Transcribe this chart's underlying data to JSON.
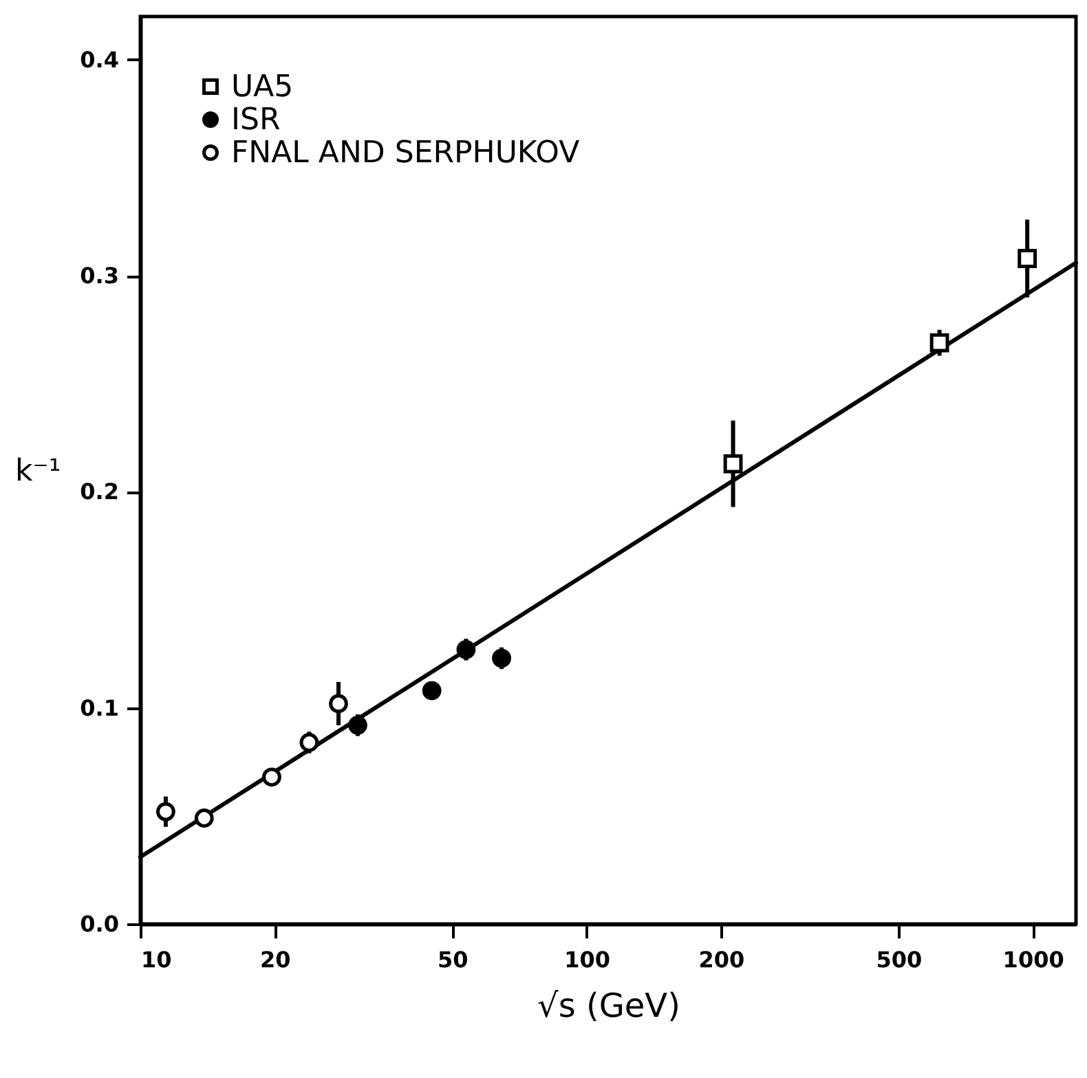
{
  "chart_data": {
    "type": "scatter",
    "xlabel": "√s (GeV)",
    "ylabel": "k⁻¹",
    "log": "x",
    "grid": false,
    "legend": "top left",
    "xlim": [
      10,
      1250
    ],
    "xticks": [
      10,
      20,
      50,
      100,
      200,
      500,
      1000
    ],
    "ylim": [
      0,
      0.42
    ],
    "yticks": [
      {
        "value": 0,
        "label": "0.0"
      },
      0.1,
      0.2,
      0.3,
      0.4
    ],
    "series": [
      {
        "name": "UA5",
        "color": "#ffffff",
        "marker": "square",
        "x": [
          213,
          618,
          972
        ],
        "values": [
          0.213,
          0.269,
          0.308
        ],
        "errors": [
          0.02,
          0.006,
          0.018
        ]
      },
      {
        "name": "ISR",
        "color": "#000000",
        "marker": "circle",
        "x": [
          30.7,
          45.0,
          53.7,
          64.5
        ],
        "values": [
          0.092,
          0.108,
          0.127,
          0.123
        ],
        "errors": [
          0.005,
          0.004,
          0.005,
          0.005
        ]
      },
      {
        "name": "FNAL AND SERPHUKOV",
        "color": "#ffffff",
        "marker": "circle",
        "x": [
          11.4,
          13.9,
          19.7,
          23.9,
          27.8
        ],
        "values": [
          0.052,
          0.049,
          0.068,
          0.084,
          0.102
        ],
        "errors": [
          0.007,
          0.004,
          0.003,
          0.005,
          0.01
        ]
      },
      {
        "type": "line",
        "color": "#000000",
        "x": [
          10,
          1250
        ],
        "values": [
          0.031,
          0.306
        ]
      }
    ]
  }
}
